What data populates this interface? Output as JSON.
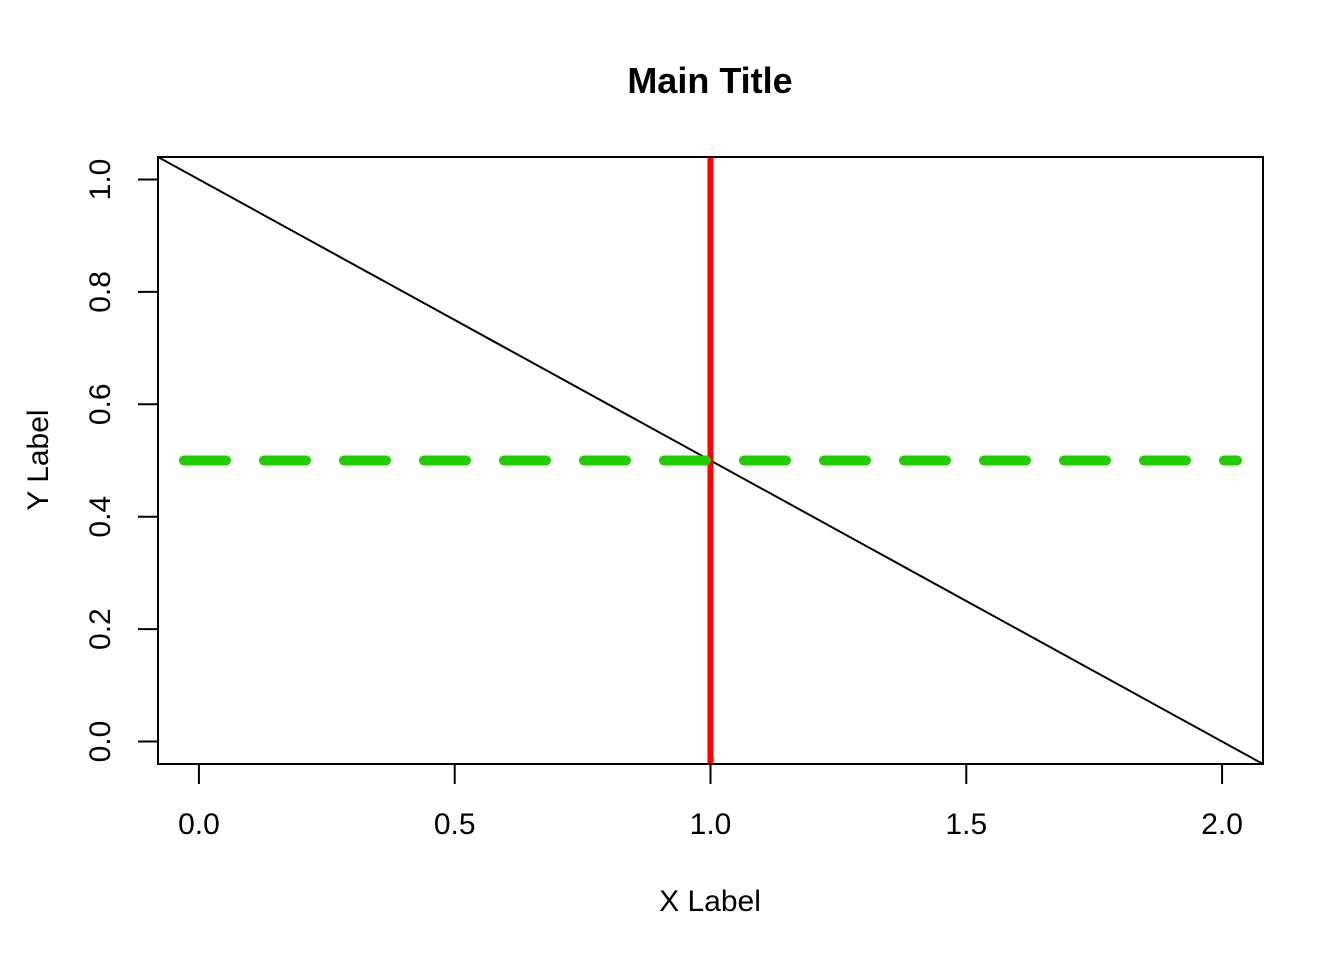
{
  "chart_data": {
    "type": "line",
    "title": "Main Title",
    "xlabel": "X Label",
    "ylabel": "Y Label",
    "xlim": [
      -0.08,
      2.08
    ],
    "ylim": [
      -0.04,
      1.04
    ],
    "x_ticks": [
      0.0,
      0.5,
      1.0,
      1.5,
      2.0
    ],
    "x_tick_labels": [
      "0.0",
      "0.5",
      "1.0",
      "1.5",
      "2.0"
    ],
    "y_ticks": [
      0.0,
      0.2,
      0.4,
      0.6,
      0.8,
      1.0
    ],
    "y_tick_labels": [
      "0.0",
      "0.2",
      "0.4",
      "0.6",
      "0.8",
      "1.0"
    ],
    "grid": false,
    "legend": "none",
    "series": [
      {
        "x": [
          -0.08,
          2.08
        ],
        "y": [
          1.04,
          -0.04
        ],
        "color": "#000000",
        "style": "solid"
      }
    ],
    "reference_lines": [
      {
        "orientation": "vertical",
        "value": 1.0,
        "color": "#ff0000",
        "style": "solid"
      },
      {
        "orientation": "horizontal",
        "value": 0.5,
        "color": "#22cc00",
        "style": "dashed"
      }
    ]
  }
}
